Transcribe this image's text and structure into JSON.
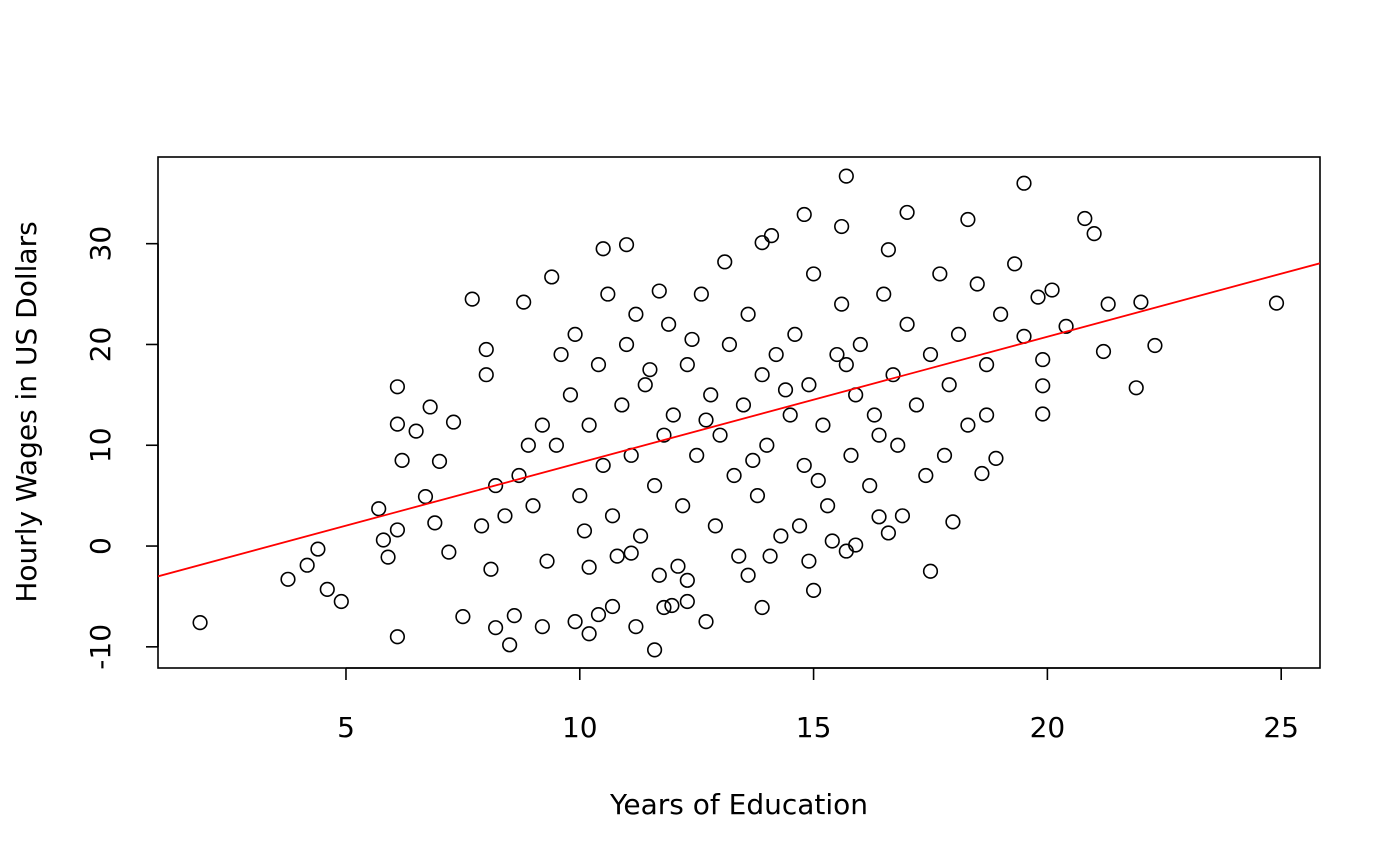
{
  "chart_data": {
    "type": "scatter",
    "x_label": "Years of Education",
    "y_label": "Hourly Wages in US Dollars",
    "color": "#000000",
    "xlim": [
      0.98,
      25.83
    ],
    "ylim": [
      -12.1,
      38.6
    ],
    "xticks": [
      5,
      10,
      15,
      20,
      25
    ],
    "yticks": [
      -10,
      0,
      10,
      20,
      30
    ],
    "fit_line": {
      "intercept": -4.23,
      "slope": 1.25,
      "color": "#ff0000"
    },
    "x": [
      1.88,
      3.76,
      4.17,
      4.4,
      4.6,
      4.9,
      5.7,
      5.8,
      5.9,
      6.1,
      6.1,
      6.1,
      6.2,
      6.1,
      6.5,
      6.7,
      6.8,
      6.9,
      7.0,
      7.2,
      7.3,
      7.5,
      7.7,
      8.0,
      8.0,
      8.1,
      8.2,
      8.5,
      8.6,
      8.8,
      9.4,
      9.2,
      10.5,
      11.0,
      11.6,
      11.2,
      10.7,
      10.4,
      9.9,
      10.2,
      15.7,
      14.8,
      17.0,
      18.3,
      19.5,
      20.8,
      21.0,
      21.3,
      21.2,
      22.0,
      21.9,
      22.3,
      24.9,
      19.9,
      19.9,
      19.9,
      20.4,
      20.1,
      18.6,
      18.7,
      17.98,
      17.5,
      16.6,
      16.4,
      15.9,
      15.7,
      15.0,
      14.9,
      13.9,
      13.6,
      14.07,
      12.7,
      12.3,
      12.3,
      11.8,
      11.97,
      11.7,
      11.1,
      10.2,
      9.5,
      9.8,
      10.0,
      10.2,
      10.4,
      10.5,
      10.7,
      10.9,
      11.0,
      11.1,
      11.3,
      11.4,
      11.6,
      11.8,
      11.9,
      12.0,
      12.2,
      12.3,
      12.5,
      12.6,
      12.8,
      12.9,
      13.0,
      13.2,
      13.3,
      13.5,
      13.6,
      13.8,
      13.9,
      14.0,
      14.2,
      14.3,
      14.5,
      14.6,
      14.8,
      14.9,
      15.0,
      15.2,
      15.3,
      15.5,
      15.6,
      15.8,
      15.9,
      16.0,
      16.2,
      16.3,
      16.5,
      16.7,
      16.8,
      17.0,
      17.2,
      17.4,
      17.5,
      17.7,
      17.9,
      18.1,
      18.3,
      18.5,
      18.7,
      19.0,
      19.3,
      9.0,
      9.2,
      8.7,
      8.9,
      8.4,
      8.2,
      7.9,
      9.6,
      9.9,
      10.6,
      11.2,
      10.8,
      12.1,
      13.4,
      14.7,
      15.4,
      16.9,
      11.5,
      12.7,
      13.7,
      14.4,
      15.7,
      16.4,
      12.4,
      13.1,
      15.1,
      17.8,
      18.9,
      19.5,
      19.8,
      9.3,
      10.1,
      11.7,
      14.1,
      13.9,
      16.6,
      15.6
    ],
    "y": [
      -7.6,
      -3.3,
      -1.9,
      -0.3,
      -4.3,
      -5.5,
      3.7,
      0.6,
      -1.1,
      -9.0,
      15.8,
      12.1,
      8.5,
      1.6,
      11.4,
      4.9,
      13.8,
      2.3,
      8.4,
      -0.6,
      12.3,
      -7.0,
      24.5,
      19.5,
      17.0,
      -2.3,
      -8.1,
      -9.8,
      -6.9,
      24.2,
      26.7,
      -8.0,
      29.5,
      29.9,
      -10.3,
      -8.0,
      -6.0,
      -6.8,
      -7.5,
      -8.7,
      36.7,
      32.9,
      33.1,
      32.4,
      36.0,
      32.5,
      31.0,
      24.0,
      19.3,
      24.2,
      15.7,
      19.9,
      24.1,
      18.5,
      13.1,
      15.9,
      21.8,
      25.4,
      7.2,
      13.0,
      2.4,
      -2.5,
      1.3,
      2.9,
      0.1,
      -0.5,
      -4.4,
      -1.5,
      -6.1,
      -2.9,
      -1.0,
      -7.5,
      -3.4,
      -5.5,
      -6.1,
      -5.9,
      -2.9,
      -0.7,
      -2.1,
      10,
      15,
      5,
      12,
      18,
      8,
      3,
      14,
      20,
      9,
      1,
      16,
      6,
      11,
      22,
      13,
      4,
      18,
      9,
      25,
      15,
      2,
      11,
      20,
      7,
      14,
      23,
      5,
      17,
      10,
      19,
      1,
      13,
      21,
      8,
      16,
      27,
      12,
      4,
      19,
      24,
      9,
      15,
      20,
      6,
      13,
      25,
      17,
      10,
      22,
      14,
      7,
      19,
      27,
      16,
      21,
      12,
      26,
      18,
      23,
      28,
      4,
      12,
      7,
      10,
      3,
      6,
      2,
      19,
      21,
      25,
      23,
      -1,
      -2,
      -1,
      2,
      0.5,
      3,
      17.5,
      12.5,
      8.5,
      15.5,
      18,
      11,
      20.5,
      28.2,
      6.5,
      9,
      8.7,
      20.8,
      24.7,
      -1.5,
      1.5,
      25.3,
      30.8,
      30.1,
      29.4,
      31.7
    ]
  }
}
